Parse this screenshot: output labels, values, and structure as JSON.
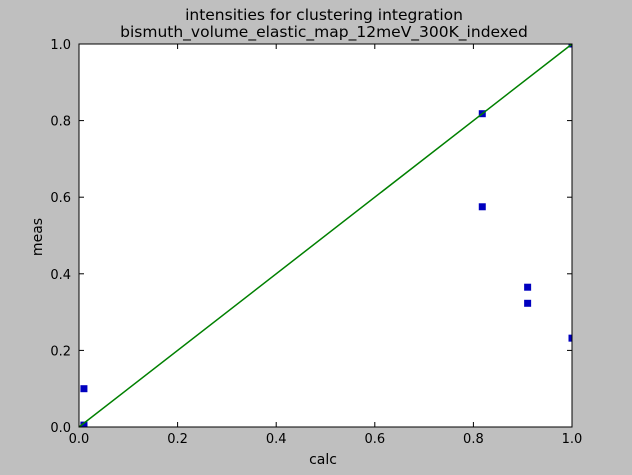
{
  "chart_data": {
    "type": "scatter",
    "title": [
      "intensities for clustering integration",
      "bismuth_volume_elastic_map_12meV_300K_indexed"
    ],
    "xlabel": "calc",
    "ylabel": "meas",
    "xlim": [
      0,
      1
    ],
    "ylim": [
      0,
      1
    ],
    "xticks": [
      "0.0",
      "0.2",
      "0.4",
      "0.6",
      "0.8",
      "1.0"
    ],
    "yticks": [
      "0.0",
      "0.2",
      "0.4",
      "0.6",
      "0.8",
      "1.0"
    ],
    "grid": false,
    "legend": false,
    "series": [
      {
        "kind": "points",
        "marker": "square",
        "color": "#0000bf",
        "points": [
          {
            "x": 0.01,
            "y": 0.1
          },
          {
            "x": 0.01,
            "y": 0.005
          },
          {
            "x": 0.01,
            "y": 0.0
          },
          {
            "x": 0.818,
            "y": 0.818
          },
          {
            "x": 0.818,
            "y": 0.575
          },
          {
            "x": 0.91,
            "y": 0.365
          },
          {
            "x": 0.91,
            "y": 0.323
          },
          {
            "x": 1.0,
            "y": 0.232
          },
          {
            "x": 1.0,
            "y": 1.0
          }
        ]
      },
      {
        "kind": "line",
        "color": "#008000",
        "points": [
          {
            "x": 0.0,
            "y": 0.0
          },
          {
            "x": 1.0,
            "y": 1.0
          }
        ]
      }
    ]
  }
}
